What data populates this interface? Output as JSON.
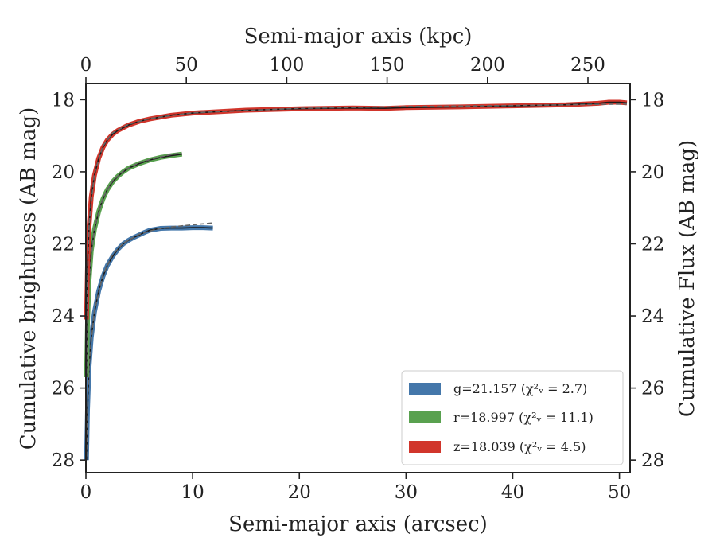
{
  "chart_data": {
    "type": "line",
    "xlabel_bottom": "Semi-major axis (arcsec)",
    "xlabel_top": "Semi-major axis (kpc)",
    "ylabel_left": "Cumulative brightness (AB mag)",
    "ylabel_right": "Cumulative Flux (AB mag)",
    "xlim": [
      0,
      51
    ],
    "ylim": [
      28.35,
      17.55
    ],
    "top_xlim": [
      0,
      271
    ],
    "y_inverted": true,
    "grid": false,
    "legend_position": "lower-right",
    "x_ticks": [
      "0",
      "10",
      "20",
      "30",
      "40",
      "50"
    ],
    "x_tick_values": [
      0,
      10,
      20,
      30,
      40,
      50
    ],
    "top_x_ticks": [
      "0",
      "50",
      "100",
      "150",
      "200",
      "250"
    ],
    "top_x_tick_values": [
      0,
      50,
      100,
      150,
      200,
      250
    ],
    "y_ticks": [
      "18",
      "20",
      "22",
      "24",
      "26",
      "28"
    ],
    "y_tick_values": [
      18,
      20,
      22,
      24,
      26,
      28
    ],
    "series": [
      {
        "name": "g",
        "legend_label": "g=21.157 (χ²ᵥ = 2.7)",
        "color": "#4477aa",
        "points": [
          [
            0.05,
            28.0
          ],
          [
            0.15,
            26.6
          ],
          [
            0.3,
            25.4
          ],
          [
            0.5,
            24.6
          ],
          [
            0.8,
            23.9
          ],
          [
            1.2,
            23.3
          ],
          [
            1.6,
            22.9
          ],
          [
            2.0,
            22.6
          ],
          [
            2.5,
            22.35
          ],
          [
            3.0,
            22.15
          ],
          [
            3.5,
            22.0
          ],
          [
            4.0,
            21.9
          ],
          [
            4.5,
            21.82
          ],
          [
            5.0,
            21.75
          ],
          [
            5.5,
            21.68
          ],
          [
            6.0,
            21.62
          ],
          [
            7.0,
            21.57
          ],
          [
            8.0,
            21.56
          ],
          [
            9.0,
            21.56
          ],
          [
            10.0,
            21.55
          ],
          [
            11.0,
            21.55
          ],
          [
            11.9,
            21.56
          ]
        ],
        "model": [
          [
            0.05,
            27.9
          ],
          [
            0.3,
            25.3
          ],
          [
            0.8,
            23.85
          ],
          [
            1.6,
            22.85
          ],
          [
            2.5,
            22.3
          ],
          [
            3.5,
            21.98
          ],
          [
            5.0,
            21.73
          ],
          [
            6.5,
            21.6
          ],
          [
            8.0,
            21.53
          ],
          [
            10.0,
            21.47
          ],
          [
            11.9,
            21.42
          ]
        ]
      },
      {
        "name": "r",
        "legend_label": "r=18.997 (χ²ᵥ = 11.1)",
        "color": "#59a14f",
        "points": [
          [
            0.05,
            25.7
          ],
          [
            0.15,
            24.2
          ],
          [
            0.3,
            23.0
          ],
          [
            0.5,
            22.2
          ],
          [
            0.8,
            21.6
          ],
          [
            1.2,
            21.1
          ],
          [
            1.6,
            20.75
          ],
          [
            2.0,
            20.5
          ],
          [
            2.5,
            20.28
          ],
          [
            3.0,
            20.12
          ],
          [
            3.5,
            20.0
          ],
          [
            4.0,
            19.9
          ],
          [
            5.0,
            19.77
          ],
          [
            6.0,
            19.67
          ],
          [
            7.0,
            19.6
          ],
          [
            8.0,
            19.55
          ],
          [
            9.0,
            19.51
          ]
        ],
        "model": [
          [
            0.05,
            25.6
          ],
          [
            0.3,
            22.95
          ],
          [
            0.8,
            21.55
          ],
          [
            1.6,
            20.72
          ],
          [
            2.5,
            20.25
          ],
          [
            3.5,
            19.98
          ],
          [
            5.0,
            19.74
          ],
          [
            6.5,
            19.62
          ],
          [
            8.0,
            19.52
          ],
          [
            9.0,
            19.48
          ]
        ]
      },
      {
        "name": "z",
        "legend_label": "z=18.039 (χ²ᵥ = 4.5)",
        "color": "#d1352b",
        "points": [
          [
            0.05,
            24.1
          ],
          [
            0.15,
            22.6
          ],
          [
            0.3,
            21.5
          ],
          [
            0.5,
            20.7
          ],
          [
            0.8,
            20.1
          ],
          [
            1.2,
            19.62
          ],
          [
            1.6,
            19.32
          ],
          [
            2.0,
            19.12
          ],
          [
            2.5,
            18.96
          ],
          [
            3.0,
            18.85
          ],
          [
            4.0,
            18.7
          ],
          [
            5.0,
            18.6
          ],
          [
            6.0,
            18.53
          ],
          [
            8.0,
            18.43
          ],
          [
            10.0,
            18.37
          ],
          [
            15.0,
            18.29
          ],
          [
            20.0,
            18.25
          ],
          [
            25.0,
            18.23
          ],
          [
            28.0,
            18.24
          ],
          [
            30.0,
            18.22
          ],
          [
            35.0,
            18.2
          ],
          [
            40.0,
            18.17
          ],
          [
            45.0,
            18.14
          ],
          [
            48.0,
            18.1
          ],
          [
            49.0,
            18.07
          ],
          [
            50.0,
            18.07
          ],
          [
            50.7,
            18.09
          ]
        ],
        "model": [
          [
            0.05,
            24.0
          ],
          [
            0.3,
            21.45
          ],
          [
            0.8,
            20.05
          ],
          [
            1.6,
            19.28
          ],
          [
            2.5,
            18.92
          ],
          [
            4.0,
            18.68
          ],
          [
            6.0,
            18.52
          ],
          [
            10.0,
            18.36
          ],
          [
            20.0,
            18.24
          ],
          [
            30.0,
            18.19
          ],
          [
            40.0,
            18.16
          ],
          [
            50.7,
            18.12
          ]
        ]
      }
    ]
  }
}
